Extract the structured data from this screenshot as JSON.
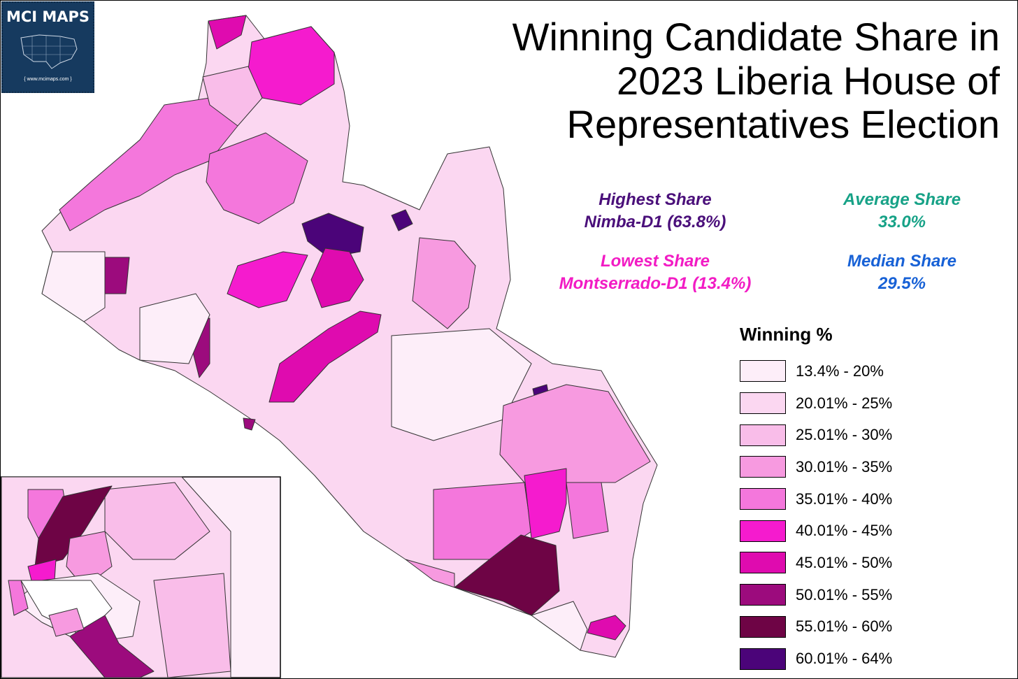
{
  "title": "Winning Candidate Share in\n2023 Liberia House of\nRepresentatives Election",
  "logo": {
    "name": "MCI MAPS",
    "url": "{ www.mcimaps.com }",
    "icon": "us-map-icon"
  },
  "stats": {
    "highest": {
      "label": "Highest Share",
      "value": "Nimba-D1 (63.8%)",
      "color": "#4a0f7a"
    },
    "average": {
      "label": "Average Share",
      "value": "33.0%",
      "color": "#17a287"
    },
    "lowest": {
      "label": "Lowest Share",
      "value": "Montserrado-D1  (13.4%)",
      "color": "#f21bc4"
    },
    "median": {
      "label": "Median Share",
      "value": "29.5%",
      "color": "#1761d6"
    }
  },
  "legend": {
    "title": "Winning %",
    "bins": [
      {
        "label": "13.4% - 20%",
        "color": "#fdeef9"
      },
      {
        "label": "20.01% - 25%",
        "color": "#fbd7f1"
      },
      {
        "label": "25.01% - 30%",
        "color": "#f9bde9"
      },
      {
        "label": "30.01% - 35%",
        "color": "#f79ae0"
      },
      {
        "label": "35.01% - 40%",
        "color": "#f477dc"
      },
      {
        "label": "40.01% - 45%",
        "color": "#f51bce"
      },
      {
        "label": "45.01% - 50%",
        "color": "#df0baf"
      },
      {
        "label": "50.01% - 55%",
        "color": "#9c0b7d"
      },
      {
        "label": "55.01% - 60%",
        "color": "#6e0445"
      },
      {
        "label": "60.01% - 64%",
        "color": "#4b0479"
      }
    ]
  }
}
